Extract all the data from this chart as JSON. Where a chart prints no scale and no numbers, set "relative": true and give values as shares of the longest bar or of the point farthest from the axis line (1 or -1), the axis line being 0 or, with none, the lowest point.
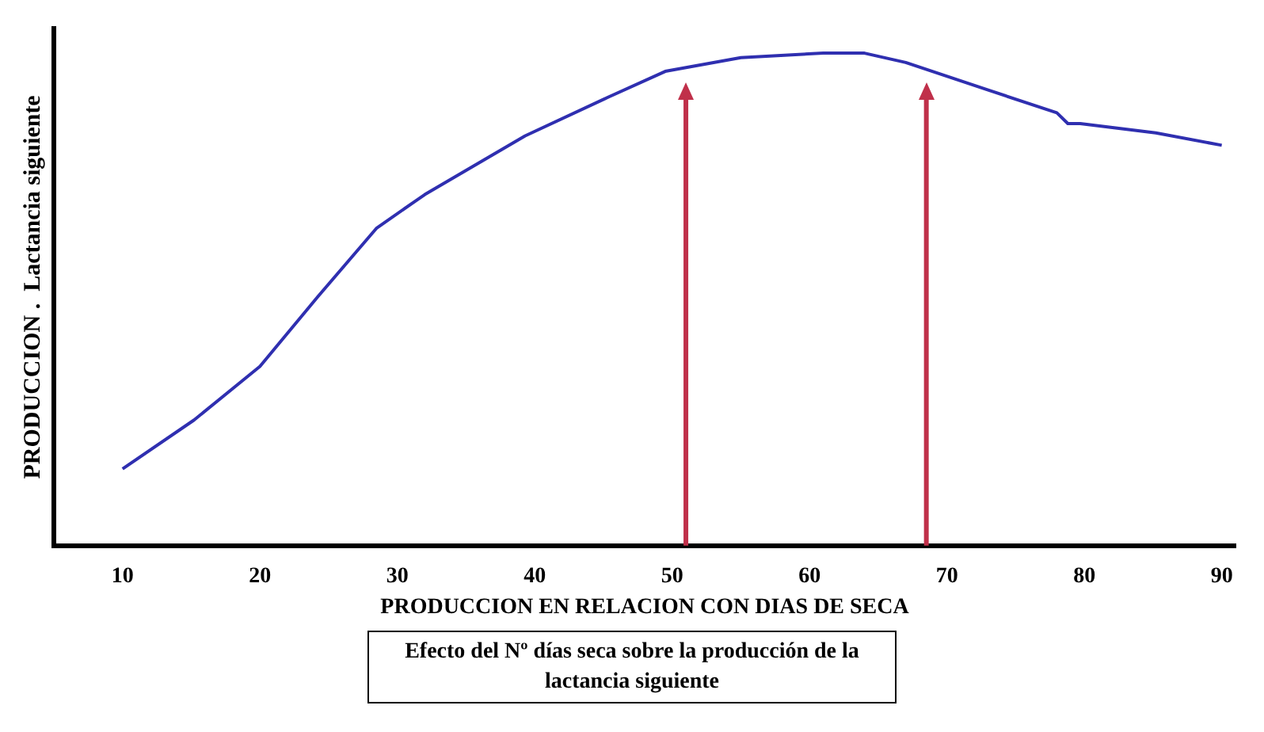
{
  "chart_data": {
    "type": "line",
    "relative": true,
    "xlabel": "PRODUCCION EN RELACION CON DIAS DE SECA",
    "ylabel": "PRODUCCION .  Lactancia siguiente",
    "x": [
      10,
      15.2,
      20,
      24.2,
      28.5,
      32,
      39.3,
      45.3,
      49.5,
      55,
      61,
      64,
      67,
      73,
      78,
      78.8,
      79.7,
      85.2,
      90
    ],
    "series": [
      {
        "color": "#2f2fb0",
        "values": [
          0.156,
          0.255,
          0.364,
          0.505,
          0.645,
          0.713,
          0.832,
          0.91,
          0.963,
          0.991,
          1,
          1,
          0.981,
          0.925,
          0.879,
          0.857,
          0.857,
          0.838,
          0.813
        ]
      }
    ],
    "xlim": [
      5,
      91
    ],
    "xticks": [
      10,
      20,
      30,
      40,
      50,
      60,
      70,
      80,
      90
    ],
    "ref_lines": [
      {
        "axis": "x",
        "value": 51,
        "color": "#c0304a"
      },
      {
        "axis": "x",
        "value": 68.5,
        "color": "#c0304a"
      }
    ],
    "annotations": [
      "Efecto del Nº días seca sobre la producción de la lactancia siguiente"
    ],
    "grid": false,
    "legend": false,
    "marker": "none",
    "line_style": "solid"
  }
}
